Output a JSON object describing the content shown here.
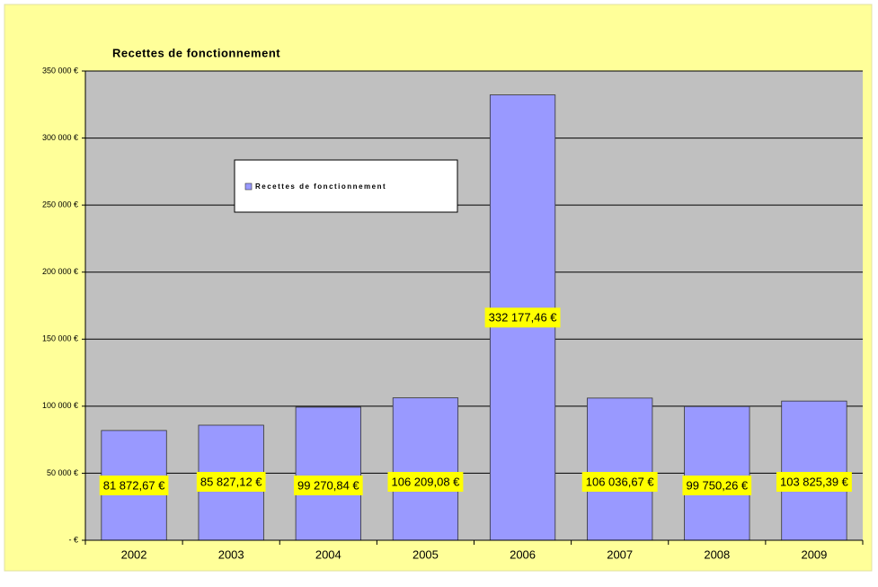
{
  "chart_data": {
    "type": "bar",
    "title": "Recettes de fonctionnement",
    "categories": [
      "2002",
      "2003",
      "2004",
      "2005",
      "2006",
      "2007",
      "2008",
      "2009"
    ],
    "series": [
      {
        "name": "Recettes de fonctionnement",
        "color": "#9999ff",
        "values": [
          81872.67,
          85827.12,
          99270.84,
          106209.08,
          332177.46,
          106036.67,
          99750.26,
          103825.39
        ],
        "value_labels": [
          "81 872,67 €",
          "85 827,12 €",
          "99 270,84 €",
          "106 209,08 €",
          "332 177,46 €",
          "106 036,67 €",
          "99 750,26 €",
          "103 825,39 €"
        ]
      }
    ],
    "ylim": [
      0,
      350000
    ],
    "yticks": [
      {
        "value": 0,
        "label": "- €"
      },
      {
        "value": 50000,
        "label": "50 000 €"
      },
      {
        "value": 100000,
        "label": "100 000 €"
      },
      {
        "value": 150000,
        "label": "150 000 €"
      },
      {
        "value": 200000,
        "label": "200 000 €"
      },
      {
        "value": 250000,
        "label": "250 000 €"
      },
      {
        "value": 300000,
        "label": "300 000 €"
      },
      {
        "value": 350000,
        "label": "350 000 €"
      }
    ],
    "grid": true,
    "legend": "inside"
  }
}
